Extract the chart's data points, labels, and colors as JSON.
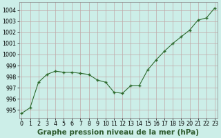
{
  "x": [
    0,
    1,
    2,
    3,
    4,
    5,
    6,
    7,
    8,
    9,
    10,
    11,
    12,
    13,
    14,
    15,
    16,
    17,
    18,
    19,
    20,
    21,
    22,
    23
  ],
  "y": [
    994.7,
    995.2,
    997.5,
    998.2,
    998.5,
    998.4,
    998.4,
    998.3,
    998.2,
    997.7,
    997.5,
    996.6,
    996.5,
    997.2,
    997.2,
    998.6,
    999.5,
    1000.3,
    1001.0,
    1001.6,
    1002.2,
    1003.1,
    1003.3,
    1004.2
  ],
  "line_color": "#2d6a2d",
  "marker": "+",
  "marker_size": 3.5,
  "marker_lw": 1.0,
  "bg_color": "#cceee8",
  "grid_color_major": "#c0a8a8",
  "grid_color_minor": "#ddc8c8",
  "xlabel": "Graphe pression niveau de la mer (hPa)",
  "xlabel_fontsize": 7.5,
  "xlabel_color": "#2d5a2d",
  "ylabel_ticks": [
    995,
    996,
    997,
    998,
    999,
    1000,
    1001,
    1002,
    1003,
    1004
  ],
  "xlim": [
    -0.3,
    23.3
  ],
  "ylim": [
    994.3,
    1004.7
  ],
  "xticks": [
    0,
    1,
    2,
    3,
    4,
    5,
    6,
    7,
    8,
    9,
    10,
    11,
    12,
    13,
    14,
    15,
    16,
    17,
    18,
    19,
    20,
    21,
    22,
    23
  ],
  "tick_fontsize": 5.8,
  "line_width": 0.8
}
